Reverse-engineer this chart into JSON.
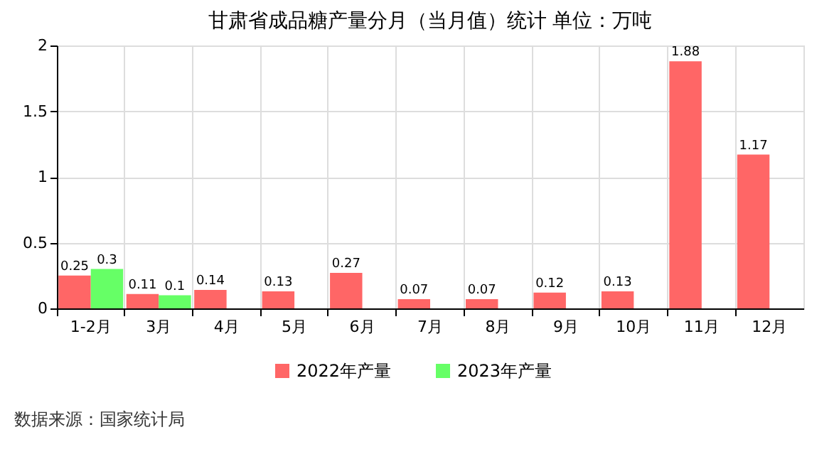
{
  "chart_data": {
    "type": "bar",
    "title": "甘肃省成品糖产量分月（当月值）统计 单位：万吨",
    "categories": [
      "1-2月",
      "3月",
      "4月",
      "5月",
      "6月",
      "7月",
      "8月",
      "9月",
      "10月",
      "11月",
      "12月"
    ],
    "series": [
      {
        "name": "2022年产量",
        "color": "#ff6666",
        "values": [
          0.25,
          0.11,
          0.14,
          0.13,
          0.27,
          0.07,
          0.07,
          0.12,
          0.13,
          1.88,
          1.17
        ]
      },
      {
        "name": "2023年产量",
        "color": "#66ff66",
        "values": [
          0.3,
          0.1,
          null,
          null,
          null,
          null,
          null,
          null,
          null,
          null,
          null
        ]
      }
    ],
    "ylim": [
      0,
      2
    ],
    "yticks": [
      0,
      0.5,
      1,
      1.5,
      2
    ],
    "grid": true,
    "legend": "bottom",
    "data_labels": true,
    "annotations": [
      "数据来源：国家统计局"
    ]
  }
}
